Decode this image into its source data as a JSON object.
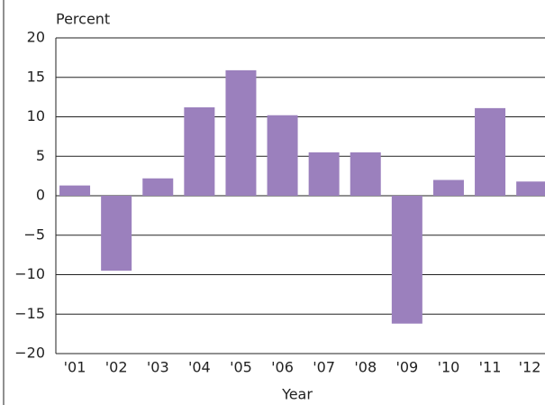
{
  "chart_data": {
    "type": "bar",
    "y_axis_label": "Percent",
    "x_axis_label": "Year",
    "categories": [
      "'01",
      "'02",
      "'03",
      "'04",
      "'05",
      "'06",
      "'07",
      "'08",
      "'09",
      "'10",
      "'11",
      "'12"
    ],
    "values": [
      1.3,
      -9.5,
      2.2,
      11.2,
      15.9,
      10.2,
      5.5,
      5.5,
      -16.2,
      2.0,
      11.1,
      1.8
    ],
    "color": "#9b80bd",
    "ylim": [
      -20,
      20
    ],
    "yticks": [
      {
        "value": -20,
        "label": "−20"
      },
      {
        "value": -15,
        "label": "−15"
      },
      {
        "value": -10,
        "label": "−10"
      },
      {
        "value": -5,
        "label": "−5"
      },
      0,
      5,
      10,
      15,
      20
    ],
    "grid": true
  }
}
